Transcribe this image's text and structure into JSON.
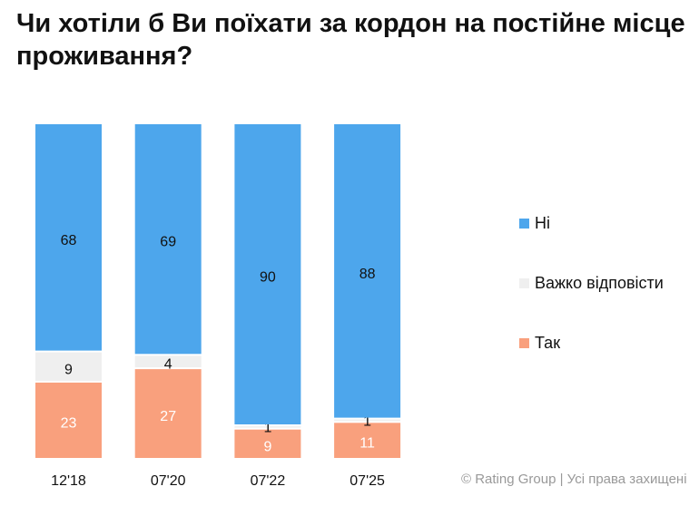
{
  "title": "Чи хотіли б Ви поїхати за кордон на постійне місце проживання?",
  "footer": "© Rating Group | Усі права захищені",
  "chart_data": {
    "type": "bar",
    "stacked": true,
    "categories": [
      "12'18",
      "07'20",
      "07'22",
      "07'25"
    ],
    "series": [
      {
        "name": "Так",
        "color": "#f9a07d",
        "values": [
          23,
          27,
          9,
          11
        ]
      },
      {
        "name": "Важко відповісти",
        "color": "#efefef",
        "values": [
          9,
          4,
          1,
          1
        ]
      },
      {
        "name": "Ні",
        "color": "#4da6ec",
        "values": [
          68,
          69,
          90,
          88
        ]
      }
    ],
    "legend_order": [
      "Ні",
      "Важко відповісти",
      "Так"
    ],
    "legend_position": "right",
    "ylim": [
      0,
      100
    ],
    "grid": false
  }
}
